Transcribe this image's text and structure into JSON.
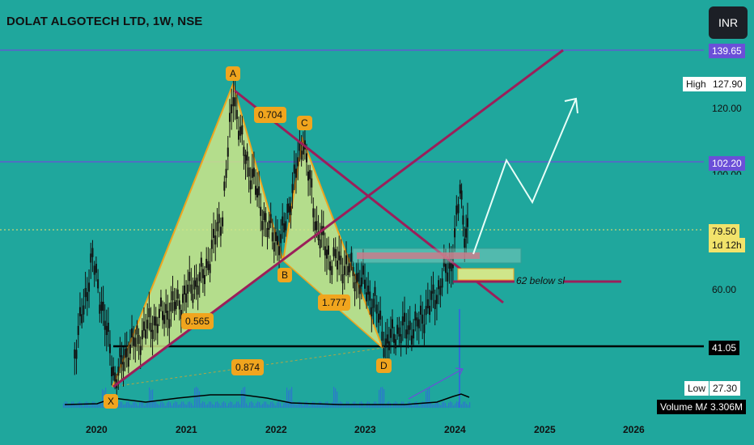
{
  "header": {
    "title": "DOLAT ALGOTECH LTD, 1W, NSE",
    "currency_button": "INR"
  },
  "colors": {
    "background": "#1fa79d",
    "harmonic_fill": "#cfe68a",
    "harmonic_edge": "#f0a51e",
    "trendline": "#9b1f5a",
    "hline_purple": "#6b4fd8",
    "support_line": "#000000",
    "projection": "#e8fff8"
  },
  "price_axis": {
    "labels": [
      "120.00",
      "100.00",
      "60.00"
    ],
    "tags": {
      "top": "139.65",
      "high_label": "High",
      "high_value": "127.90",
      "mid": "102.20",
      "current_price": "79.50",
      "countdown": "1d 12h",
      "support": "41.05",
      "low_label": "Low",
      "low_value": "27.30",
      "volume_label": "Volume MA",
      "volume_value": "3.306M"
    }
  },
  "time_axis": {
    "labels": [
      "2020",
      "2021",
      "2022",
      "2023",
      "2024",
      "2025",
      "2026"
    ]
  },
  "pattern": {
    "points": [
      "X",
      "A",
      "B",
      "C",
      "D"
    ],
    "ratios": {
      "xb": "0.565",
      "ab_c": "0.704",
      "bc_d": "1.777",
      "xd": "0.874"
    }
  },
  "annotation": "62 below sl",
  "chart_data": {
    "type": "line",
    "title": "DOLAT ALGOTECH LTD, 1W, NSE",
    "xlabel": "",
    "ylabel": "",
    "x_ticks": [
      "2020",
      "2021",
      "2022",
      "2023",
      "2024",
      "2025",
      "2026"
    ],
    "ylim": [
      20,
      145
    ],
    "series": [
      {
        "name": "",
        "x": [
          2019.75,
          2019.95,
          2020.05,
          2020.2,
          2020.35,
          2020.6,
          2020.9,
          2021.2,
          2021.4,
          2021.52,
          2021.6,
          2021.75,
          2021.9,
          2022.05,
          2022.18,
          2022.3,
          2022.45,
          2022.6,
          2022.8,
          2022.95,
          2023.1,
          2023.22,
          2023.35,
          2023.55,
          2023.75,
          2023.85,
          2023.95,
          2024.05,
          2024.1,
          2024.15
        ],
        "values": [
          38,
          70,
          55,
          30,
          40,
          48,
          55,
          65,
          85,
          126,
          110,
          95,
          80,
          75,
          93,
          110,
          80,
          70,
          67,
          62,
          55,
          41,
          46,
          47,
          56,
          63,
          68,
          92,
          80,
          79.5
        ]
      }
    ],
    "horizontal_levels": [
      139.65,
      102.2,
      79.5,
      41.05
    ],
    "harmonic": {
      "X": 27.3,
      "A": 127.9,
      "B": 66,
      "C": 112,
      "D": 41.05
    }
  }
}
